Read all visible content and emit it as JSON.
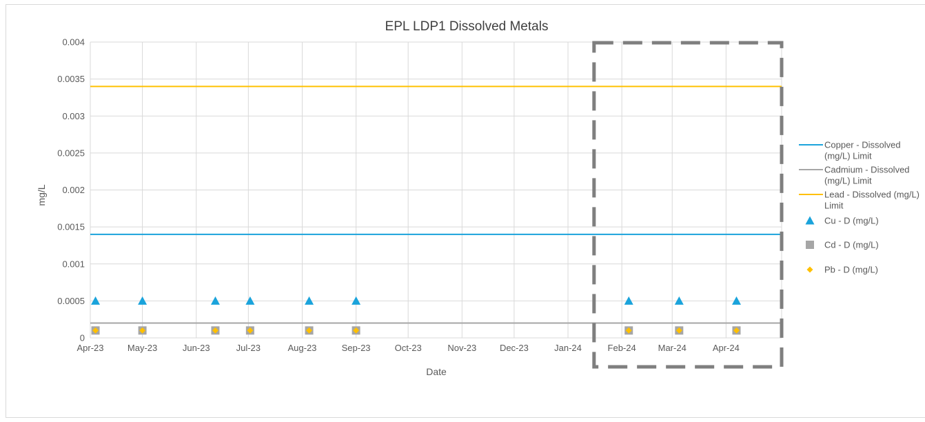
{
  "chart_data": {
    "type": "scatter",
    "title": "EPL LDP1 Dissolved Metals",
    "xlabel": "Date",
    "ylabel": "mg/L",
    "x_type": "date",
    "x_ticks": [
      {
        "date": "2023-04-01",
        "label": "Apr-23"
      },
      {
        "date": "2023-05-01",
        "label": "May-23"
      },
      {
        "date": "2023-06-01",
        "label": "Jun-23"
      },
      {
        "date": "2023-07-01",
        "label": "Jul-23"
      },
      {
        "date": "2023-08-01",
        "label": "Aug-23"
      },
      {
        "date": "2023-09-01",
        "label": "Sep-23"
      },
      {
        "date": "2023-10-01",
        "label": "Oct-23"
      },
      {
        "date": "2023-11-01",
        "label": "Nov-23"
      },
      {
        "date": "2023-12-01",
        "label": "Dec-23"
      },
      {
        "date": "2024-01-01",
        "label": "Jan-24"
      },
      {
        "date": "2024-02-01",
        "label": "Feb-24"
      },
      {
        "date": "2024-03-01",
        "label": "Mar-24"
      },
      {
        "date": "2024-04-01",
        "label": "Apr-24"
      }
    ],
    "xlim": [
      "2023-04-01",
      "2024-05-03"
    ],
    "ylim": [
      0,
      0.004
    ],
    "y_ticks": [
      {
        "value": 0,
        "label": "0"
      },
      {
        "value": 0.0005,
        "label": "0.0005"
      },
      {
        "value": 0.001,
        "label": "0.001"
      },
      {
        "value": 0.0015,
        "label": "0.0015"
      },
      {
        "value": 0.002,
        "label": "0.002"
      },
      {
        "value": 0.0025,
        "label": "0.0025"
      },
      {
        "value": 0.003,
        "label": "0.003"
      },
      {
        "value": 0.0035,
        "label": "0.0035"
      },
      {
        "value": 0.004,
        "label": "0.004"
      }
    ],
    "grid": true,
    "legend_position": "right",
    "limit_lines": [
      {
        "name": "Copper - Dissolved (mg/L) Limit",
        "legend_lines": [
          "Copper - Dissolved",
          "(mg/L) Limit"
        ],
        "value": 0.0014,
        "color": "#1aa3db"
      },
      {
        "name": "Cadmium - Dissolved (mg/L) Limit",
        "legend_lines": [
          "Cadmium - Dissolved",
          "(mg/L) Limit"
        ],
        "value": 0.0002,
        "color": "#a6a6a6"
      },
      {
        "name": "Lead - Dissolved (mg/L) Limit",
        "legend_lines": [
          "Lead - Dissolved (mg/L)",
          "Limit"
        ],
        "value": 0.0034,
        "color": "#ffc000"
      }
    ],
    "series": [
      {
        "name": "Cu - D (mg/L)",
        "marker": "triangle",
        "color": "#1aa3db",
        "x": [
          "2023-04-04",
          "2023-05-01",
          "2023-06-12",
          "2023-07-02",
          "2023-08-05",
          "2023-09-01",
          "2024-02-05",
          "2024-03-05",
          "2024-04-07"
        ],
        "y": [
          0.0005,
          0.0005,
          0.0005,
          0.0005,
          0.0005,
          0.0005,
          0.0005,
          0.0005,
          0.0005
        ]
      },
      {
        "name": "Cd - D (mg/L)",
        "marker": "square",
        "color": "#a6a6a6",
        "x": [
          "2023-04-04",
          "2023-05-01",
          "2023-06-12",
          "2023-07-02",
          "2023-08-05",
          "2023-09-01",
          "2024-02-05",
          "2024-03-05",
          "2024-04-07"
        ],
        "y": [
          0.0001,
          0.0001,
          0.0001,
          0.0001,
          0.0001,
          0.0001,
          0.0001,
          0.0001,
          0.0001
        ]
      },
      {
        "name": "Pb - D (mg/L)",
        "marker": "diamond",
        "color": "#ffc000",
        "x": [
          "2023-04-04",
          "2023-05-01",
          "2023-06-12",
          "2023-07-02",
          "2023-08-05",
          "2023-09-01",
          "2024-02-05",
          "2024-03-05",
          "2024-04-07"
        ],
        "y": [
          0.0001,
          0.0001,
          0.0001,
          0.0001,
          0.0001,
          0.0001,
          0.0001,
          0.0001,
          0.0001
        ]
      }
    ],
    "annotations": [
      {
        "type": "dashed-box",
        "x_start": "2024-01-16",
        "x_end": "2024-05-03",
        "color": "#7f7f7f"
      }
    ]
  }
}
